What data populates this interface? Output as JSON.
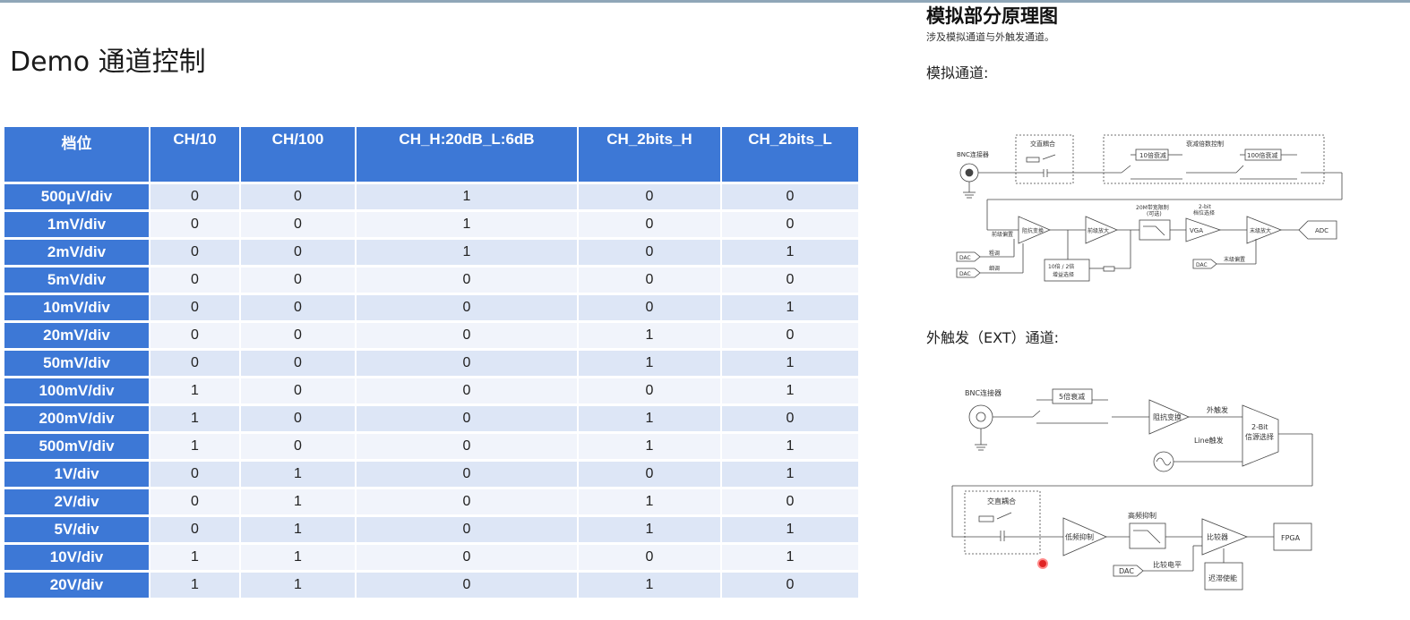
{
  "slide": {
    "title": "Demo 通道控制"
  },
  "table": {
    "headers": [
      "档位",
      "CH/10",
      "CH/100",
      "CH_H:20dB_L:6dB",
      "CH_2bits_H",
      "CH_2bits_L"
    ],
    "rows": [
      [
        "500μV/div",
        "0",
        "0",
        "1",
        "0",
        "0"
      ],
      [
        "1mV/div",
        "0",
        "0",
        "1",
        "0",
        "0"
      ],
      [
        "2mV/div",
        "0",
        "0",
        "1",
        "0",
        "1"
      ],
      [
        "5mV/div",
        "0",
        "0",
        "0",
        "0",
        "0"
      ],
      [
        "10mV/div",
        "0",
        "0",
        "0",
        "0",
        "1"
      ],
      [
        "20mV/div",
        "0",
        "0",
        "0",
        "1",
        "0"
      ],
      [
        "50mV/div",
        "0",
        "0",
        "0",
        "1",
        "1"
      ],
      [
        "100mV/div",
        "1",
        "0",
        "0",
        "0",
        "1"
      ],
      [
        "200mV/div",
        "1",
        "0",
        "0",
        "1",
        "0"
      ],
      [
        "500mV/div",
        "1",
        "0",
        "0",
        "1",
        "1"
      ],
      [
        "1V/div",
        "0",
        "1",
        "0",
        "0",
        "1"
      ],
      [
        "2V/div",
        "0",
        "1",
        "0",
        "1",
        "0"
      ],
      [
        "5V/div",
        "0",
        "1",
        "0",
        "1",
        "1"
      ],
      [
        "10V/div",
        "1",
        "1",
        "0",
        "0",
        "1"
      ],
      [
        "20V/div",
        "1",
        "1",
        "0",
        "1",
        "0"
      ]
    ]
  },
  "panel": {
    "title": "模拟部分原理图",
    "subtitle": "涉及模拟通道与外触发通道。",
    "analog_heading": "模拟通道:",
    "ext_heading": "外触发（EXT）通道:"
  },
  "analog_diagram": {
    "bnc": "BNC连接器",
    "ac_coupling": "交直耦合",
    "atten_ctrl": "衰减倍数控制",
    "att10": "10倍衰减",
    "att100": "100倍衰减",
    "bw_limit": "20M带宽限制",
    "bw_optional": "(可选)",
    "bits_top": "2-bit",
    "bits_bottom": "档位选择",
    "pre_offset": "前级偏置",
    "impedance": "阻抗变换",
    "pre_amp": "前级放大",
    "vga": "VGA",
    "final_amp": "末级放大",
    "adc": "ADC",
    "dac1": "DAC",
    "dac2": "DAC",
    "dac3": "DAC",
    "coarse": "粗调",
    "fine": "细调",
    "gain_top": "10倍 / 2倍",
    "gain_bottom": "增益选择",
    "final_offset": "末级偏置"
  },
  "ext_diagram": {
    "bnc": "BNC连接器",
    "att5": "5倍衰减",
    "impedance": "阻抗变换",
    "ext_trig": "外触发",
    "line_trig": "Line触发",
    "mux_top": "2-Bit",
    "mux_bottom": "信源选择",
    "ac_coupling": "交直耦合",
    "lf_reject": "低频抑制",
    "hf_reject": "高频抑制",
    "comparator": "比较器",
    "fpga": "FPGA",
    "dac": "DAC",
    "cmp_level": "比较电平",
    "hysteresis": "迟滞使能"
  }
}
